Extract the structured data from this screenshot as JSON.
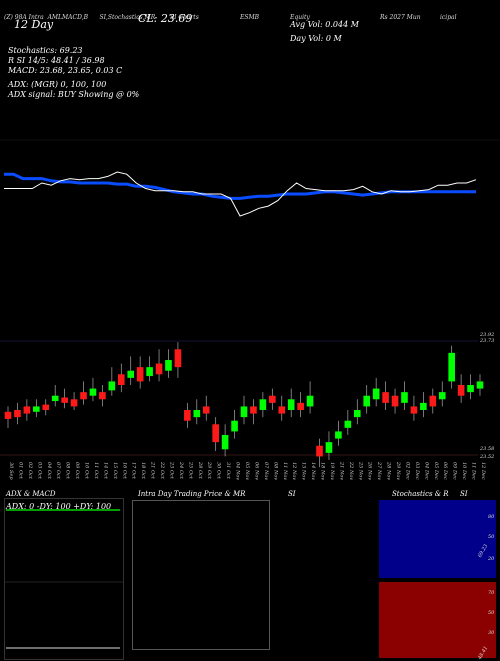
{
  "header": {
    "line1_a": "(Z) 98A Intra",
    "line1_b": "AMLMACD,B",
    "line1_c": "SI,Stochastics,MR",
    "line1_d": "SI Charts",
    "line1_e": "ESMB",
    "line1_f": "Equity",
    "line1_g": "Rs 2027 Mun",
    "line1_h": "icipal",
    "day_label": "12 Day",
    "close_label": "CL: 23.69",
    "avg_vol": "Avg Vol: 0.044  M",
    "day_vol": "Day Vol: 0  M",
    "stoch": "Stochastics: 69.23",
    "rsi": "R          SI 14/5: 48.41 / 36.98",
    "macd": "MACD: 23.68,  23.65,  0.03 C",
    "adx": "ADX:                    (MGR) 0,   100,   100",
    "adx_signal": "ADX  signal:                              BUY Showing @ 0%"
  },
  "price_axis": {
    "top_label_1": "23.92",
    "top_label_2": "23.73",
    "bottom_label_1": "23.58",
    "bottom_label_2": "23.52"
  },
  "dates": [
    "30 Sep",
    "01 Oct",
    "02 Oct",
    "03 Oct",
    "04 Oct",
    "07 Oct",
    "08 Oct",
    "09 Oct",
    "10 Oct",
    "11 Oct",
    "14 Oct",
    "15 Oct",
    "16 Oct",
    "17 Oct",
    "18 Oct",
    "21 Oct",
    "22 Oct",
    "23 Oct",
    "24 Oct",
    "25 Oct",
    "28 Oct",
    "29 Oct",
    "30 Oct",
    "31 Oct",
    "04 Nov",
    "05 Nov",
    "06 Nov",
    "07 Nov",
    "08 Nov",
    "11 Nov",
    "12 Nov",
    "13 Nov",
    "14 Nov",
    "18 Nov",
    "19 Nov",
    "21 Nov",
    "22 Nov",
    "25 Nov",
    "26 Nov",
    "27 Nov",
    "28 Nov",
    "29 Nov",
    "02 Dec",
    "03 Dec",
    "04 Dec",
    "05 Dec",
    "06 Dec",
    "09 Dec",
    "10 Dec",
    "11 Dec",
    "12 Dec"
  ],
  "panels": {
    "adx_macd": {
      "title": "ADX  & MACD",
      "value_line": "ADX: 0   -DY: 100  +DY: 100"
    },
    "intraday": {
      "title": "Intra  Day Trading Price  & MR",
      "title_b": "SI"
    },
    "stoch_rsi": {
      "title": "Stochastics & R",
      "title_b": "SI",
      "stoch_ticks": [
        "80",
        "50",
        "20"
      ],
      "rsi_ticks": [
        "70",
        "50",
        "30"
      ],
      "stoch_val": "69.23",
      "rsi_val": "48.41"
    }
  },
  "colors": {
    "up": "#00ff00",
    "down": "#ff1a1a",
    "ma": "#0a4cff",
    "price": "#ffffff",
    "rsi_bg": "#8b0000",
    "stoch_bg": "#00008b",
    "adx_line": "#00ff00"
  },
  "chart_data": {
    "type": "line",
    "title": "",
    "series": [
      {
        "values": [
          78,
          78,
          74,
          74,
          74,
          72,
          71,
          71,
          70,
          70,
          70,
          70,
          69,
          69,
          67,
          67,
          66,
          64,
          62,
          61,
          60,
          60,
          58,
          57,
          56,
          56,
          57,
          58,
          58,
          59,
          60,
          60,
          60,
          61,
          62,
          62,
          61,
          60,
          59,
          60,
          61,
          62,
          62,
          62,
          62,
          62,
          62,
          62,
          62,
          62,
          62
        ]
      },
      {
        "values": [
          65,
          65,
          65,
          65,
          70,
          68,
          72,
          74,
          73,
          74,
          74,
          76,
          80,
          78,
          70,
          65,
          63,
          63,
          63,
          62,
          62,
          60,
          60,
          60,
          56,
          40,
          43,
          47,
          49,
          54,
          63,
          70,
          65,
          64,
          63,
          63,
          63,
          64,
          67,
          62,
          60,
          63,
          62,
          62,
          63,
          64,
          68,
          68,
          70,
          70,
          73
        ]
      }
    ]
  },
  "candles": [
    {
      "o": 27,
      "c": 23,
      "h": 30,
      "l": 18
    },
    {
      "o": 28,
      "c": 24,
      "h": 32,
      "l": 20
    },
    {
      "o": 30,
      "c": 26,
      "h": 34,
      "l": 22
    },
    {
      "o": 27,
      "c": 30,
      "h": 34,
      "l": 24
    },
    {
      "o": 31,
      "c": 28,
      "h": 34,
      "l": 25
    },
    {
      "o": 33,
      "c": 36,
      "h": 42,
      "l": 30
    },
    {
      "o": 35,
      "c": 32,
      "h": 40,
      "l": 29
    },
    {
      "o": 34,
      "c": 30,
      "h": 38,
      "l": 28
    },
    {
      "o": 38,
      "c": 34,
      "h": 44,
      "l": 31
    },
    {
      "o": 36,
      "c": 40,
      "h": 46,
      "l": 33
    },
    {
      "o": 38,
      "c": 34,
      "h": 42,
      "l": 30
    },
    {
      "o": 39,
      "c": 44,
      "h": 52,
      "l": 36
    },
    {
      "o": 48,
      "c": 42,
      "h": 54,
      "l": 38
    },
    {
      "o": 46,
      "c": 50,
      "h": 58,
      "l": 42
    },
    {
      "o": 52,
      "c": 44,
      "h": 58,
      "l": 40
    },
    {
      "o": 47,
      "c": 52,
      "h": 58,
      "l": 44
    },
    {
      "o": 54,
      "c": 48,
      "h": 62,
      "l": 44
    },
    {
      "o": 50,
      "c": 56,
      "h": 62,
      "l": 46
    },
    {
      "o": 62,
      "c": 52,
      "h": 66,
      "l": 46
    },
    {
      "o": 28,
      "c": 22,
      "h": 32,
      "l": 18
    },
    {
      "o": 24,
      "c": 28,
      "h": 34,
      "l": 20
    },
    {
      "o": 30,
      "c": 26,
      "h": 36,
      "l": 22
    },
    {
      "o": 20,
      "c": 10,
      "h": 24,
      "l": 5
    },
    {
      "o": 6,
      "c": 14,
      "h": 20,
      "l": 2
    },
    {
      "o": 16,
      "c": 22,
      "h": 28,
      "l": 12
    },
    {
      "o": 24,
      "c": 30,
      "h": 36,
      "l": 20
    },
    {
      "o": 30,
      "c": 26,
      "h": 34,
      "l": 20
    },
    {
      "o": 28,
      "c": 34,
      "h": 38,
      "l": 24
    },
    {
      "o": 36,
      "c": 32,
      "h": 40,
      "l": 28
    },
    {
      "o": 30,
      "c": 26,
      "h": 36,
      "l": 22
    },
    {
      "o": 28,
      "c": 34,
      "h": 40,
      "l": 24
    },
    {
      "o": 32,
      "c": 28,
      "h": 38,
      "l": 24
    },
    {
      "o": 30,
      "c": 36,
      "h": 44,
      "l": 26
    },
    {
      "o": 8,
      "c": 2,
      "h": 12,
      "l": -4
    },
    {
      "o": 4,
      "c": 10,
      "h": 16,
      "l": 0
    },
    {
      "o": 12,
      "c": 16,
      "h": 22,
      "l": 8
    },
    {
      "o": 18,
      "c": 22,
      "h": 28,
      "l": 14
    },
    {
      "o": 24,
      "c": 28,
      "h": 34,
      "l": 20
    },
    {
      "o": 30,
      "c": 36,
      "h": 42,
      "l": 26
    },
    {
      "o": 34,
      "c": 40,
      "h": 46,
      "l": 30
    },
    {
      "o": 38,
      "c": 32,
      "h": 44,
      "l": 28
    },
    {
      "o": 36,
      "c": 30,
      "h": 40,
      "l": 26
    },
    {
      "o": 32,
      "c": 38,
      "h": 44,
      "l": 28
    },
    {
      "o": 30,
      "c": 26,
      "h": 36,
      "l": 22
    },
    {
      "o": 28,
      "c": 32,
      "h": 38,
      "l": 24
    },
    {
      "o": 36,
      "c": 30,
      "h": 40,
      "l": 26
    },
    {
      "o": 34,
      "c": 38,
      "h": 44,
      "l": 30
    },
    {
      "o": 44,
      "c": 60,
      "h": 64,
      "l": 40
    },
    {
      "o": 42,
      "c": 36,
      "h": 48,
      "l": 32
    },
    {
      "o": 38,
      "c": 42,
      "h": 48,
      "l": 34
    },
    {
      "o": 40,
      "c": 44,
      "h": 48,
      "l": 36
    }
  ]
}
